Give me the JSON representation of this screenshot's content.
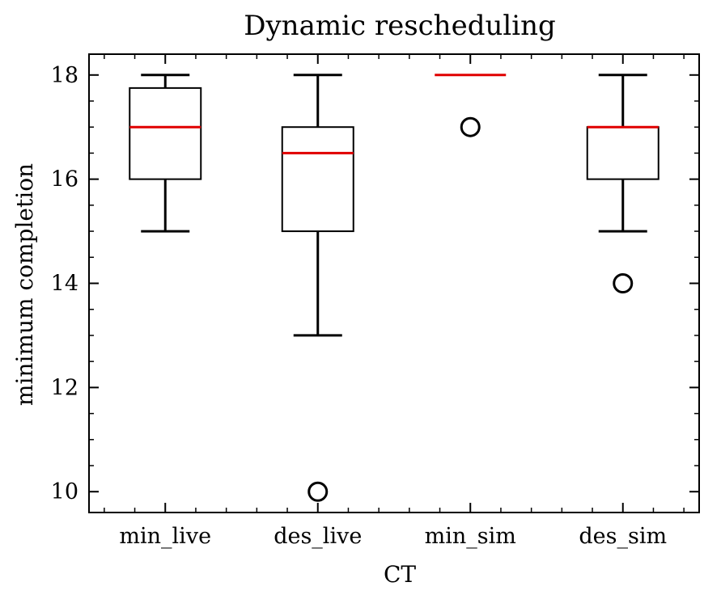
{
  "chart_data": {
    "type": "box",
    "title": "Dynamic rescheduling",
    "xlabel": "CT",
    "ylabel": "minimum completion",
    "categories": [
      "min_live",
      "des_live",
      "min_sim",
      "des_sim"
    ],
    "boxes": [
      {
        "category": "min_live",
        "whisker_low": 15,
        "q1": 16,
        "median": 17,
        "q3": 17.75,
        "whisker_high": 18,
        "outliers": []
      },
      {
        "category": "des_live",
        "whisker_low": 13,
        "q1": 15,
        "median": 16.5,
        "q3": 17,
        "whisker_high": 18,
        "outliers": [
          10
        ]
      },
      {
        "category": "min_sim",
        "whisker_low": 18,
        "q1": 18,
        "median": 18,
        "q3": 18,
        "whisker_high": 18,
        "outliers": [
          17
        ]
      },
      {
        "category": "des_sim",
        "whisker_low": 15,
        "q1": 16,
        "median": 17,
        "q3": 17,
        "whisker_high": 18,
        "outliers": [
          14
        ]
      }
    ],
    "yticks": [
      10,
      12,
      14,
      16,
      18
    ],
    "ylim": [
      9.6,
      18.4
    ],
    "grid": false,
    "legend": "none",
    "colors": {
      "box": "#000000",
      "median": "#e00000",
      "outlier": "#000000"
    }
  }
}
